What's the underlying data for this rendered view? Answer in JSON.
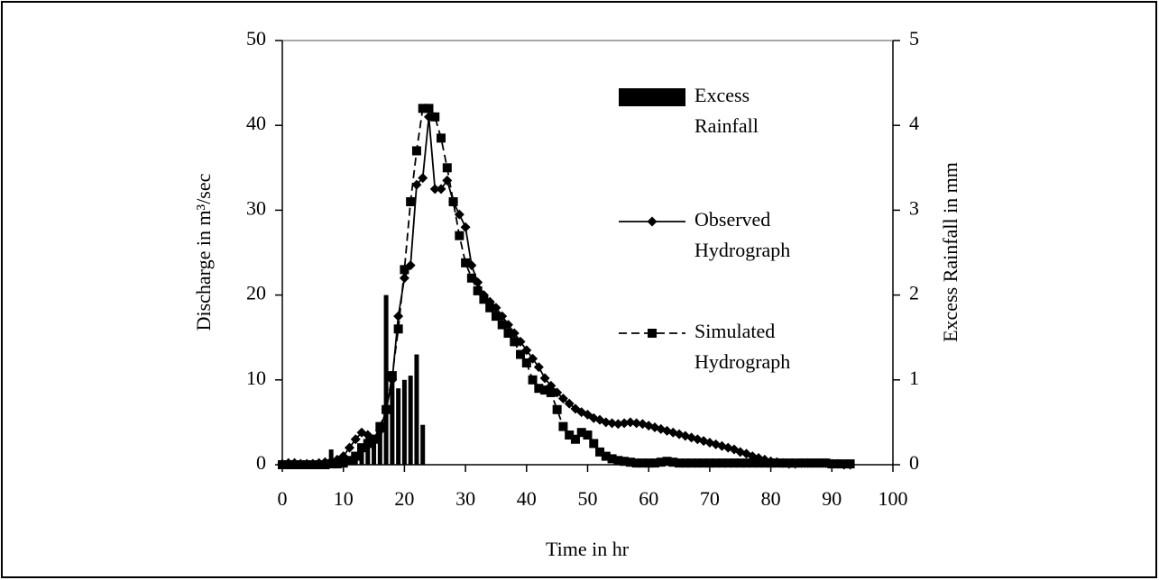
{
  "chart_data": {
    "type": "line",
    "x_label": "Time in hr",
    "y_label": "Discharge in m³/sec",
    "y2_label": "Excess Rainfall in mm",
    "xlim": [
      0,
      100
    ],
    "xticks": [
      0,
      10,
      20,
      30,
      40,
      50,
      60,
      70,
      80,
      90,
      100
    ],
    "ylim": [
      0,
      50
    ],
    "yticks": [
      0,
      10,
      20,
      30,
      40,
      50
    ],
    "y2lim": [
      0,
      5
    ],
    "y2ticks": [
      0,
      1,
      2,
      3,
      4,
      5
    ],
    "legend": "upper right",
    "series": [
      {
        "name": "Excess Rainfall",
        "type": "bar",
        "axis": "y2",
        "color": "#000000",
        "x": [
          8,
          12,
          13,
          14,
          15,
          16,
          17,
          18,
          19,
          20,
          21,
          22,
          23
        ],
        "values": [
          0.18,
          0.15,
          0.25,
          0.35,
          0.3,
          0.45,
          2.0,
          1.0,
          0.9,
          1.0,
          1.05,
          1.3,
          0.47
        ]
      },
      {
        "name": "Observed Hydrograph",
        "type": "line",
        "marker": "diamond",
        "dashed": false,
        "color": "#000000",
        "x": [
          0,
          1,
          2,
          3,
          4,
          5,
          6,
          7,
          8,
          9,
          10,
          11,
          12,
          13,
          14,
          15,
          16,
          17,
          18,
          19,
          20,
          21,
          22,
          23,
          24,
          25,
          26,
          27,
          28,
          29,
          30,
          31,
          32,
          33,
          34,
          35,
          36,
          37,
          38,
          39,
          40,
          41,
          42,
          43,
          44,
          45,
          46,
          47,
          48,
          49,
          50,
          51,
          52,
          53,
          54,
          55,
          56,
          57,
          58,
          59,
          60,
          61,
          62,
          63,
          64,
          65,
          66,
          67,
          68,
          69,
          70,
          71,
          72,
          73,
          74,
          75,
          76,
          77,
          78,
          79,
          80,
          81,
          82,
          83,
          84,
          85,
          86,
          87,
          88,
          89,
          90,
          91,
          92,
          93
        ],
        "values": [
          0.1,
          0.2,
          0.2,
          0.1,
          0.1,
          0.1,
          0.2,
          0.3,
          0.4,
          0.6,
          1.0,
          2.0,
          3.0,
          3.8,
          3.5,
          3.0,
          4.0,
          6.5,
          10,
          17.5,
          22,
          23.5,
          33,
          33.8,
          41,
          32.5,
          32.5,
          33.5,
          31,
          29.5,
          28,
          23.5,
          21.5,
          20,
          19.2,
          18.5,
          17.5,
          16.5,
          15.5,
          14.5,
          13.5,
          12.5,
          11.5,
          10.2,
          9.3,
          8.5,
          7.8,
          7.2,
          6.6,
          6.2,
          5.9,
          5.5,
          5.3,
          5.0,
          4.9,
          4.8,
          4.9,
          5.0,
          4.9,
          4.8,
          4.6,
          4.4,
          4.2,
          4.0,
          3.8,
          3.6,
          3.4,
          3.2,
          3.0,
          2.8,
          2.6,
          2.4,
          2.2,
          2.0,
          1.8,
          1.5,
          1.3,
          1.0,
          0.8,
          0.6,
          0.4,
          0.3,
          0.2,
          0.1,
          0.1,
          0.2,
          0.2,
          0.2,
          0.2,
          0.2,
          0.1,
          0.1,
          0.0,
          0.0
        ]
      },
      {
        "name": "Simulated Hydrograph",
        "type": "line",
        "marker": "square",
        "dashed": true,
        "color": "#000000",
        "x": [
          0,
          1,
          2,
          3,
          4,
          5,
          6,
          7,
          8,
          9,
          10,
          11,
          12,
          13,
          14,
          15,
          16,
          17,
          18,
          19,
          20,
          21,
          22,
          23,
          24,
          25,
          26,
          27,
          28,
          29,
          30,
          31,
          32,
          33,
          34,
          35,
          36,
          37,
          38,
          39,
          40,
          41,
          42,
          43,
          44,
          45,
          46,
          47,
          48,
          49,
          50,
          51,
          52,
          53,
          54,
          55,
          56,
          57,
          58,
          59,
          60,
          61,
          62,
          63,
          64,
          65,
          66,
          67,
          68,
          69,
          70,
          71,
          72,
          73,
          74,
          75,
          76,
          77,
          78,
          79,
          80,
          81,
          82,
          83,
          84,
          85,
          86,
          87,
          88,
          89,
          90,
          91,
          92,
          93
        ],
        "values": [
          0.0,
          0.0,
          0.0,
          0.0,
          0.0,
          0.0,
          0.0,
          0.0,
          0.1,
          0.1,
          0.2,
          0.5,
          1.0,
          2.0,
          2.5,
          3.0,
          4.5,
          6.5,
          10.5,
          16,
          23,
          31,
          37,
          42,
          42,
          41,
          38.5,
          35,
          31,
          27,
          23.8,
          22,
          20.5,
          19.5,
          18.5,
          17.5,
          16.5,
          15.5,
          14.5,
          13,
          12,
          10,
          9,
          8.8,
          8.5,
          6.5,
          4.5,
          3.5,
          3,
          3.8,
          3.5,
          2.5,
          1.5,
          1,
          0.7,
          0.5,
          0.4,
          0.3,
          0.2,
          0.2,
          0.2,
          0.2,
          0.3,
          0.4,
          0.3,
          0.2,
          0.2,
          0.2,
          0.2,
          0.2,
          0.2,
          0.2,
          0.2,
          0.2,
          0.2,
          0.2,
          0.2,
          0.2,
          0.2,
          0.2,
          0.2,
          0.2,
          0.2,
          0.2,
          0.2,
          0.2,
          0.2,
          0.2,
          0.2,
          0.2,
          0.1,
          0.1,
          0.1,
          0.1
        ]
      }
    ]
  }
}
